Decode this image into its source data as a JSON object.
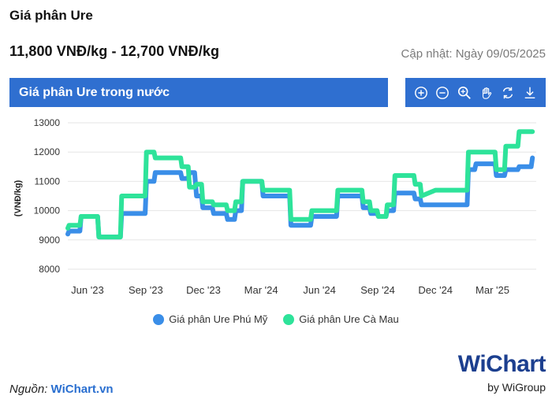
{
  "header": {
    "title": "Giá phân Ure",
    "price_range": "11,800 VNĐ/kg - 12,700 VNĐ/kg",
    "updated": "Cập nhật: Ngày 09/05/2025"
  },
  "panel": {
    "title": "Giá phân Ure trong nước"
  },
  "toolbar": {
    "icons": [
      "zoom-in-icon",
      "zoom-out-icon",
      "magnify-icon",
      "pan-hand-icon",
      "reset-icon",
      "download-icon"
    ]
  },
  "colors": {
    "accent": "#2f6fd0",
    "series_1": "#3a8ee8",
    "series_2": "#2ee39a"
  },
  "footer": {
    "source_label": "Nguồn:",
    "source_link": "WiChart.vn",
    "brand_w": "Wi",
    "brand_name": "Chart",
    "brand_by": "by WiGroup"
  },
  "chart_data": {
    "type": "line",
    "title": "",
    "ylabel": "(VNĐ/kg)",
    "xlabel": "",
    "ylim": [
      8000,
      13000
    ],
    "yticks": [
      8000,
      9000,
      10000,
      11000,
      12000,
      13000
    ],
    "grid": true,
    "legend_position": "bottom",
    "x_range": [
      "2023-05-01",
      "2025-05-09"
    ],
    "x_ticks": [
      {
        "label": "Jun '23",
        "date": "2023-06-01"
      },
      {
        "label": "Sep '23",
        "date": "2023-09-01"
      },
      {
        "label": "Dec '23",
        "date": "2023-12-01"
      },
      {
        "label": "Mar '24",
        "date": "2024-03-01"
      },
      {
        "label": "Jun '24",
        "date": "2024-06-01"
      },
      {
        "label": "Sep '24",
        "date": "2024-09-01"
      },
      {
        "label": "Dec '24",
        "date": "2024-12-01"
      },
      {
        "label": "Mar '25",
        "date": "2025-03-01"
      }
    ],
    "series": [
      {
        "name": "Giá phân Ure Phú Mỹ",
        "points": [
          [
            "2023-05-01",
            9200
          ],
          [
            "2023-05-03",
            9300
          ],
          [
            "2023-05-20",
            9300
          ],
          [
            "2023-05-22",
            9800
          ],
          [
            "2023-06-17",
            9800
          ],
          [
            "2023-06-19",
            9100
          ],
          [
            "2023-07-23",
            9100
          ],
          [
            "2023-07-25",
            9900
          ],
          [
            "2023-08-31",
            9900
          ],
          [
            "2023-09-02",
            11000
          ],
          [
            "2023-09-14",
            11000
          ],
          [
            "2023-09-16",
            11300
          ],
          [
            "2023-10-26",
            11300
          ],
          [
            "2023-10-28",
            11100
          ],
          [
            "2023-11-07",
            11100
          ],
          [
            "2023-11-09",
            11300
          ],
          [
            "2023-11-17",
            11300
          ],
          [
            "2023-11-20",
            10500
          ],
          [
            "2023-11-28",
            10500
          ],
          [
            "2023-11-30",
            10100
          ],
          [
            "2023-12-15",
            10100
          ],
          [
            "2023-12-17",
            9900
          ],
          [
            "2024-01-06",
            9900
          ],
          [
            "2024-01-08",
            9700
          ],
          [
            "2024-01-19",
            9700
          ],
          [
            "2024-01-21",
            10000
          ],
          [
            "2024-01-30",
            10000
          ],
          [
            "2024-02-01",
            11000
          ],
          [
            "2024-03-02",
            11000
          ],
          [
            "2024-03-04",
            10500
          ],
          [
            "2024-04-15",
            10500
          ],
          [
            "2024-04-17",
            9500
          ],
          [
            "2024-05-18",
            9500
          ],
          [
            "2024-05-20",
            9800
          ],
          [
            "2024-06-28",
            9800
          ],
          [
            "2024-06-30",
            10500
          ],
          [
            "2024-08-07",
            10500
          ],
          [
            "2024-08-09",
            10100
          ],
          [
            "2024-08-19",
            10100
          ],
          [
            "2024-08-21",
            9900
          ],
          [
            "2024-08-31",
            9900
          ],
          [
            "2024-09-02",
            9800
          ],
          [
            "2024-09-14",
            9800
          ],
          [
            "2024-09-16",
            10000
          ],
          [
            "2024-09-26",
            10000
          ],
          [
            "2024-09-28",
            10600
          ],
          [
            "2024-10-28",
            10600
          ],
          [
            "2024-10-30",
            10400
          ],
          [
            "2024-11-07",
            10400
          ],
          [
            "2024-11-09",
            10200
          ],
          [
            "2024-12-01",
            10200
          ],
          [
            "2025-01-09",
            10200
          ],
          [
            "2025-01-20",
            10200
          ],
          [
            "2025-01-22",
            11400
          ],
          [
            "2025-02-01",
            11400
          ],
          [
            "2025-02-03",
            11600
          ],
          [
            "2025-03-05",
            11600
          ],
          [
            "2025-03-07",
            11200
          ],
          [
            "2025-03-20",
            11200
          ],
          [
            "2025-03-22",
            11400
          ],
          [
            "2025-04-10",
            11400
          ],
          [
            "2025-04-12",
            11500
          ],
          [
            "2025-05-01",
            11500
          ],
          [
            "2025-05-03",
            11800
          ]
        ]
      },
      {
        "name": "Giá phân Ure Cà Mau",
        "points": [
          [
            "2023-05-01",
            9400
          ],
          [
            "2023-05-03",
            9500
          ],
          [
            "2023-05-20",
            9500
          ],
          [
            "2023-05-22",
            9800
          ],
          [
            "2023-06-17",
            9800
          ],
          [
            "2023-06-19",
            9100
          ],
          [
            "2023-07-23",
            9100
          ],
          [
            "2023-07-25",
            10500
          ],
          [
            "2023-08-31",
            10500
          ],
          [
            "2023-09-02",
            12000
          ],
          [
            "2023-09-14",
            12000
          ],
          [
            "2023-09-16",
            11800
          ],
          [
            "2023-10-26",
            11800
          ],
          [
            "2023-10-28",
            11500
          ],
          [
            "2023-11-07",
            11500
          ],
          [
            "2023-11-09",
            10800
          ],
          [
            "2023-11-17",
            10800
          ],
          [
            "2023-11-20",
            10900
          ],
          [
            "2023-11-28",
            10900
          ],
          [
            "2023-11-30",
            10300
          ],
          [
            "2023-12-15",
            10300
          ],
          [
            "2023-12-17",
            10200
          ],
          [
            "2024-01-06",
            10200
          ],
          [
            "2024-01-08",
            10000
          ],
          [
            "2024-01-19",
            10000
          ],
          [
            "2024-01-21",
            10300
          ],
          [
            "2024-01-30",
            10300
          ],
          [
            "2024-02-01",
            11000
          ],
          [
            "2024-03-02",
            11000
          ],
          [
            "2024-03-04",
            10700
          ],
          [
            "2024-04-15",
            10700
          ],
          [
            "2024-04-17",
            9700
          ],
          [
            "2024-05-18",
            9700
          ],
          [
            "2024-05-20",
            10000
          ],
          [
            "2024-06-28",
            10000
          ],
          [
            "2024-06-30",
            10700
          ],
          [
            "2024-08-07",
            10700
          ],
          [
            "2024-08-09",
            10300
          ],
          [
            "2024-08-19",
            10300
          ],
          [
            "2024-08-21",
            10000
          ],
          [
            "2024-08-31",
            10000
          ],
          [
            "2024-09-02",
            9800
          ],
          [
            "2024-09-14",
            9800
          ],
          [
            "2024-09-16",
            10200
          ],
          [
            "2024-09-26",
            10200
          ],
          [
            "2024-09-28",
            11200
          ],
          [
            "2024-10-28",
            11200
          ],
          [
            "2024-10-30",
            10900
          ],
          [
            "2024-11-07",
            10900
          ],
          [
            "2024-11-09",
            10500
          ],
          [
            "2024-12-01",
            10700
          ],
          [
            "2025-01-09",
            10700
          ],
          [
            "2025-01-20",
            10700
          ],
          [
            "2025-01-22",
            12000
          ],
          [
            "2025-02-01",
            12000
          ],
          [
            "2025-02-03",
            12000
          ],
          [
            "2025-03-05",
            12000
          ],
          [
            "2025-03-07",
            11400
          ],
          [
            "2025-03-20",
            11400
          ],
          [
            "2025-03-22",
            12200
          ],
          [
            "2025-04-10",
            12200
          ],
          [
            "2025-04-12",
            12700
          ],
          [
            "2025-05-01",
            12700
          ],
          [
            "2025-05-03",
            12700
          ]
        ]
      }
    ]
  }
}
